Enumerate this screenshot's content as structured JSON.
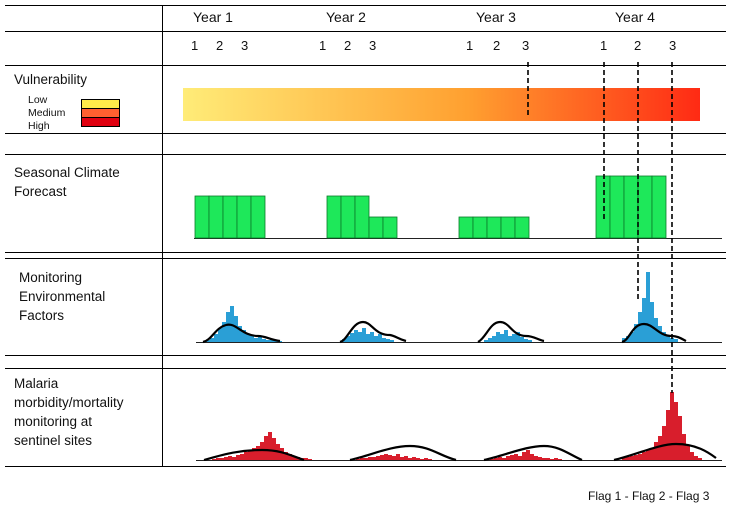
{
  "header": {
    "years": [
      "Year 1",
      "Year 2",
      "Year 3",
      "Year 4"
    ],
    "sub_ticks": [
      "1",
      "2",
      "3"
    ]
  },
  "rows": {
    "vulnerability": {
      "label": "Vulnerability"
    },
    "forecast": {
      "label_lines": [
        "Seasonal Climate",
        "Forecast"
      ]
    },
    "monitoring": {
      "label_lines": [
        "Monitoring",
        "Environmental",
        "Factors"
      ]
    },
    "malaria": {
      "label_lines": [
        "Malaria",
        "morbidity/mortality",
        "monitoring at",
        "sentinel sites"
      ]
    }
  },
  "legend": [
    {
      "label": "Low",
      "color": "#ffec4a"
    },
    {
      "label": "Medium",
      "color": "#ff6030"
    },
    {
      "label": "High",
      "color": "#e00010"
    }
  ],
  "colors": {
    "gradient_start": "#ffec78",
    "gradient_mid": "#ffa030",
    "gradient_end": "#ff2a14",
    "forecast_bar": "#1ee85a",
    "environment_bar": "#2a9fd6",
    "malaria_bar": "#d81e2c",
    "curve": "#000000"
  },
  "footer": {
    "text": "Flag 1 - Flag 2 -  Flag 3"
  }
}
